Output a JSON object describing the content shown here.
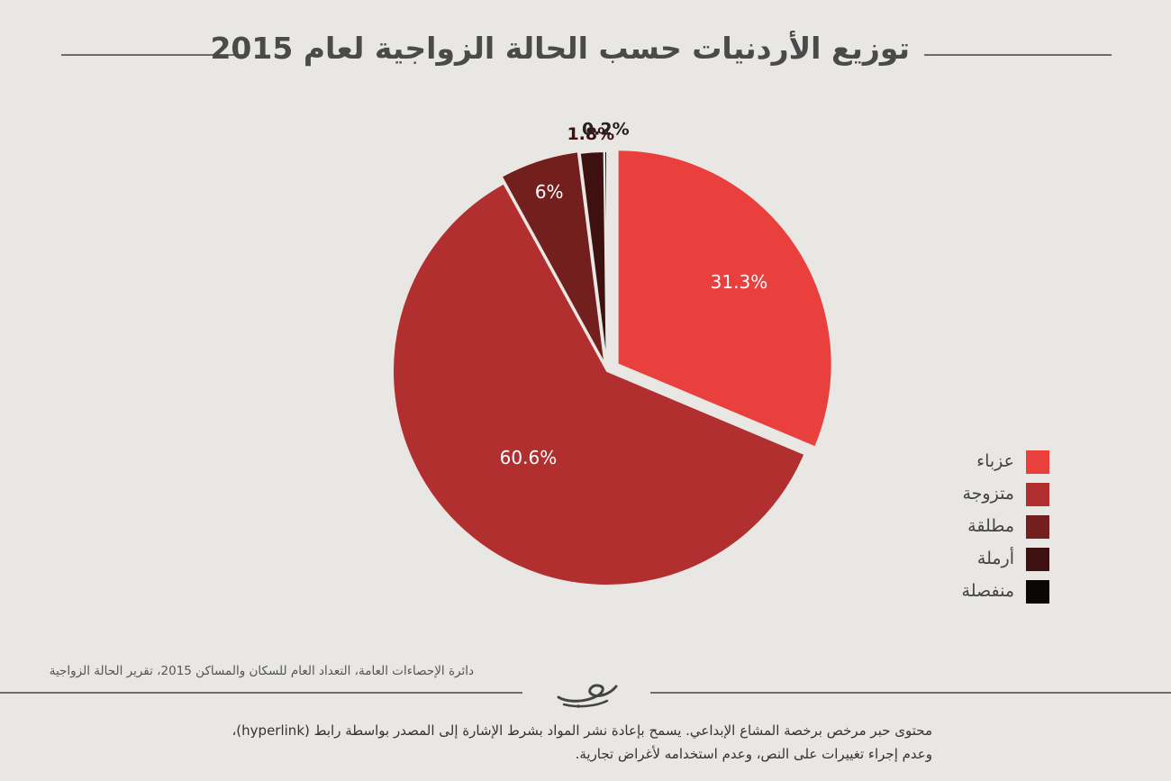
{
  "title": "توزيع الأردنيات حسب الحالة الزواجية لعام 2015",
  "chart_data": {
    "type": "pie",
    "slices": [
      {
        "label": "عزباء",
        "value": 31.3,
        "display": "31.3%",
        "color": "#e9403d"
      },
      {
        "label": "متزوجة",
        "value": 60.6,
        "display": "60.6%",
        "color": "#b22f30"
      },
      {
        "label": "مطلقة",
        "value": 6,
        "display": "6%",
        "color": "#721f1d"
      },
      {
        "label": "أرملة",
        "value": 1.8,
        "display": "1.8%",
        "color": "#3e1110"
      },
      {
        "label": "منفصلة",
        "value": 0.2,
        "display": "0.2%",
        "color": "#0c0606"
      }
    ],
    "start_angle_deg": 0,
    "direction": "clockwise",
    "exploded": true,
    "legend_position": "right"
  },
  "source": "دائرة الإحصاءات العامة، التعداد العام للسكان والمساكن 2015، تقرير الحالة الزواجية",
  "license": {
    "line1": "محتوى حبر مرخص برخصة المشاع الإبداعي. يسمح بإعادة نشر المواد بشرط الإشارة إلى المصدر بواسطة رابط (hyperlink)،",
    "line2": "وعدم إجراء تغييرات على النص، وعدم استخدامه لأغراض تجارية."
  },
  "colors": {
    "background": "#e9e7e3",
    "rule": "#6d6d6d"
  }
}
